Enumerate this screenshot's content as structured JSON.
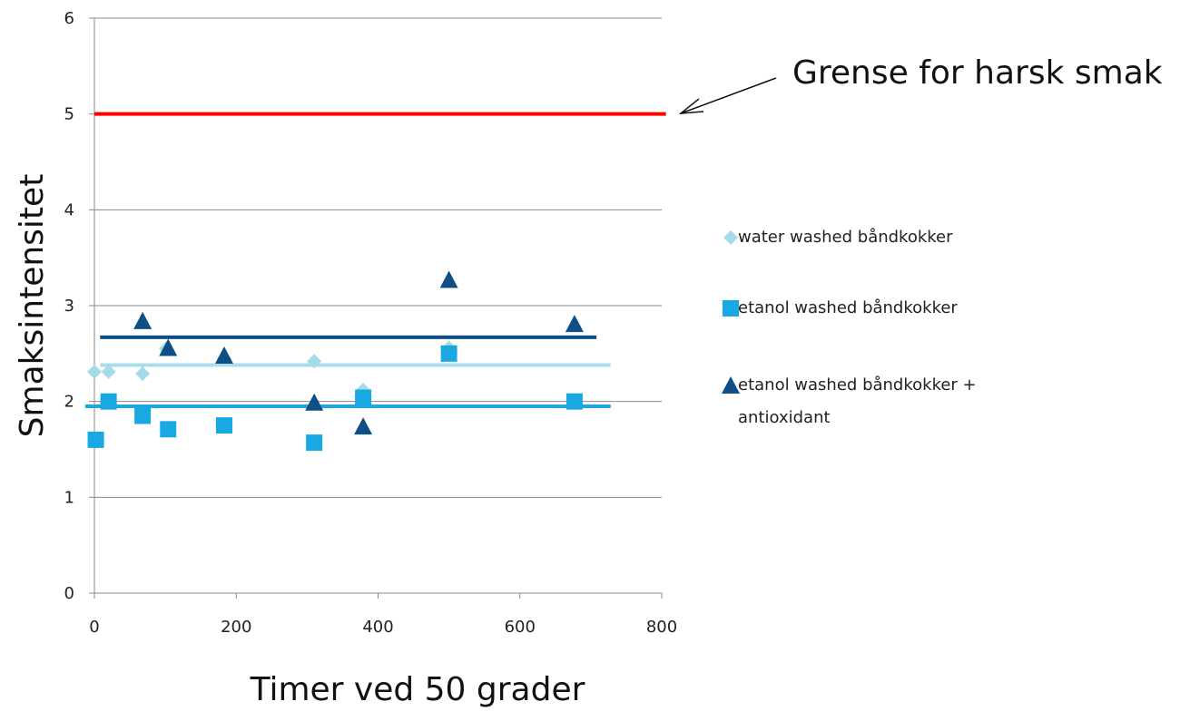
{
  "chart_data": {
    "type": "scatter",
    "xlabel": "Timer ved 50 grader",
    "ylabel": "Smaksintensitet",
    "xlim": [
      0,
      800
    ],
    "xticks": [
      0,
      200,
      400,
      600,
      800
    ],
    "ylim": [
      0,
      6
    ],
    "yticks": [
      0,
      1,
      2,
      3,
      4,
      5,
      6
    ],
    "grid": true,
    "legend": "right",
    "series": [
      {
        "name": "water washed båndkokker",
        "color": "#a3dbe8",
        "marker": "diamond",
        "x": [
          0,
          20,
          68,
          101,
          183,
          310,
          379,
          500
        ],
        "values": [
          2.31,
          2.31,
          2.29,
          2.55,
          2.45,
          2.42,
          2.12,
          2.56
        ]
      },
      {
        "name": "etanol washed båndkokker",
        "color": "#1aa8e3",
        "marker": "square",
        "x": [
          2,
          20,
          68,
          104,
          183,
          310,
          379,
          500,
          677
        ],
        "values": [
          1.6,
          2.0,
          1.85,
          1.71,
          1.75,
          1.57,
          2.04,
          2.5,
          2.0
        ]
      },
      {
        "name": "etanol washed båndkokker + antioxidant",
        "color": "#0e4f85",
        "marker": "triangle",
        "x": [
          68,
          104,
          183,
          310,
          379,
          500,
          677
        ],
        "values": [
          2.84,
          2.56,
          2.48,
          1.99,
          1.74,
          3.27,
          2.81
        ]
      }
    ],
    "lines": [
      {
        "color": "#0f4c81",
        "y": 2.67,
        "x": [
          8,
          708
        ]
      },
      {
        "color": "#a8dde9",
        "y": 2.38,
        "x": [
          8,
          728
        ]
      },
      {
        "color": "#21a5e0",
        "y": 1.95,
        "x": [
          -13,
          728
        ]
      },
      {
        "color": "#ff0000",
        "y": 5,
        "x": [
          0,
          806
        ]
      }
    ],
    "annotation": "Grense for harsk smak"
  }
}
